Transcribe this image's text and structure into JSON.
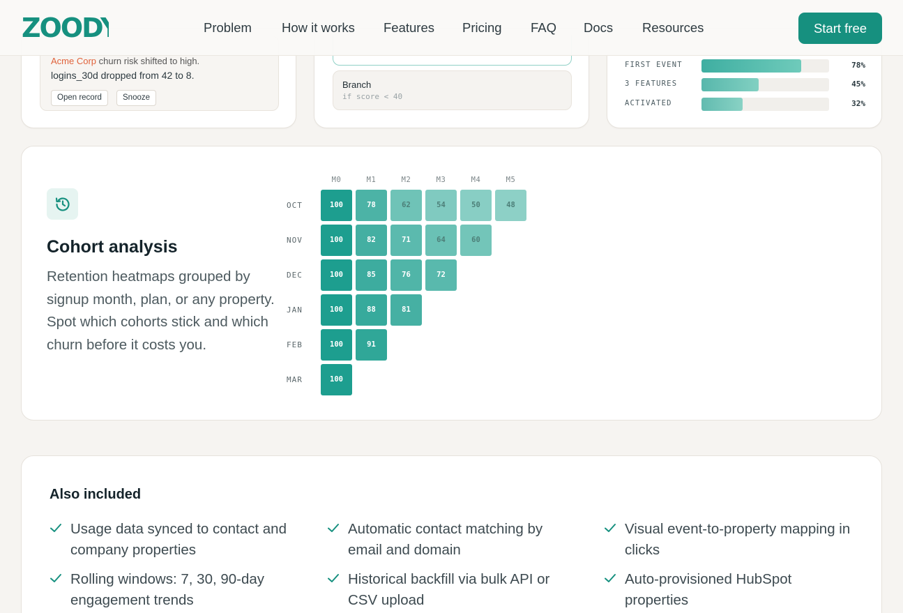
{
  "brand": {
    "logo_text": "ZOODY",
    "accent": "#16907f"
  },
  "nav": {
    "items": [
      "Problem",
      "How it works",
      "Features",
      "Pricing",
      "FAQ",
      "Docs",
      "Resources"
    ],
    "cta_label": "Start free"
  },
  "alert_card": {
    "cut_line_company": "Acme Corp",
    "cut_line_rest": " churn risk shifted to high.",
    "line": "logins_30d dropped from 42 to 8.",
    "actions": [
      "Open record",
      "Snooze"
    ]
  },
  "workflow_card": {
    "step_title": "Branch",
    "step_code": "if score < 40"
  },
  "funnel_card": {
    "rows": [
      {
        "label": "FIRST EVENT",
        "value": 78,
        "pct": "78%"
      },
      {
        "label": "3 FEATURES",
        "value": 45,
        "pct": "45%"
      },
      {
        "label": "ACTIVATED",
        "value": 32,
        "pct": "32%"
      }
    ]
  },
  "cohort": {
    "icon": "history-icon",
    "title": "Cohort analysis",
    "description": "Retention heatmaps grouped by signup month, plan, or any property. Spot which cohorts stick and which churn before it costs you."
  },
  "chart_data": {
    "type": "heatmap",
    "columns": [
      "M0",
      "M1",
      "M2",
      "M3",
      "M4",
      "M5"
    ],
    "rows": [
      "OCT",
      "NOV",
      "DEC",
      "JAN",
      "FEB",
      "MAR"
    ],
    "values": [
      [
        100,
        78,
        62,
        54,
        50,
        48
      ],
      [
        100,
        82,
        71,
        64,
        60
      ],
      [
        100,
        85,
        76,
        72
      ],
      [
        100,
        88,
        81
      ],
      [
        100,
        91
      ],
      [
        100
      ]
    ],
    "color_scale": [
      "#93d3c9",
      "#1d9e8f"
    ]
  },
  "also_included": {
    "title": "Also included",
    "items": [
      "Usage data synced to contact and company properties",
      "Automatic contact matching by email and domain",
      "Visual event-to-property mapping in clicks",
      "Rolling windows: 7, 30, 90-day engagement trends",
      "Historical backfill via bulk API or CSV upload",
      "Auto-provisioned HubSpot properties"
    ]
  }
}
